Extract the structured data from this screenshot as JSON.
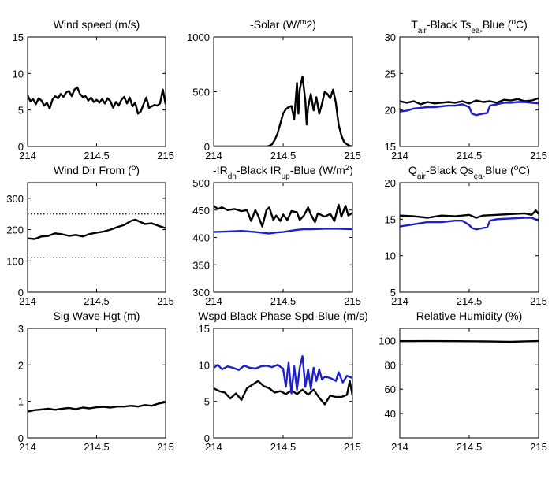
{
  "figure": {
    "background": "#ffffff"
  },
  "colors": {
    "black": "#000000",
    "blue": "#1f1fc8"
  },
  "chart_data": [
    {
      "type": "line",
      "title": "Wind speed (m/s)",
      "xlim": [
        214,
        215
      ],
      "ylim": [
        0,
        15
      ],
      "xticks": [
        214,
        214.5,
        215
      ],
      "xticklabels": [
        "214",
        "214.5",
        "215"
      ],
      "yticks": [
        0,
        5,
        10,
        15
      ],
      "yticklabels": [
        "0",
        "5",
        "10",
        "15"
      ],
      "series": [
        {
          "color": "#000000",
          "x": [
            214.0,
            214.02,
            214.04,
            214.06,
            214.08,
            214.1,
            214.12,
            214.14,
            214.16,
            214.18,
            214.2,
            214.22,
            214.24,
            214.26,
            214.28,
            214.3,
            214.32,
            214.34,
            214.36,
            214.38,
            214.4,
            214.42,
            214.44,
            214.46,
            214.48,
            214.5,
            214.52,
            214.54,
            214.56,
            214.58,
            214.6,
            214.62,
            214.64,
            214.66,
            214.68,
            214.7,
            214.72,
            214.74,
            214.76,
            214.78,
            214.8,
            214.82,
            214.84,
            214.86,
            214.88,
            214.9,
            214.92,
            214.94,
            214.96,
            214.98,
            215.0
          ],
          "y": [
            7.0,
            6.2,
            6.5,
            5.8,
            6.6,
            6.3,
            5.6,
            6.0,
            5.2,
            6.4,
            6.9,
            6.6,
            7.2,
            6.8,
            7.4,
            7.6,
            6.9,
            7.8,
            8.1,
            7.2,
            6.8,
            6.9,
            6.3,
            6.7,
            6.1,
            6.4,
            6.0,
            6.5,
            5.9,
            6.6,
            6.2,
            5.3,
            6.1,
            5.6,
            6.4,
            6.8,
            5.9,
            6.7,
            5.5,
            6.0,
            4.5,
            4.8,
            5.8,
            6.7,
            5.3,
            5.5,
            5.7,
            5.6,
            5.9,
            7.8,
            5.8
          ]
        }
      ]
    },
    {
      "type": "line",
      "title": "-Solar (W/m2)",
      "xlim": [
        214,
        215
      ],
      "ylim": [
        0,
        1000
      ],
      "xticks": [
        214,
        214.5,
        215
      ],
      "xticklabels": [
        "214",
        "214.5",
        "215"
      ],
      "yticks": [
        0,
        500,
        1000
      ],
      "yticklabels": [
        "0",
        "500",
        "1000"
      ],
      "series": [
        {
          "color": "#000000",
          "x": [
            214.0,
            214.1,
            214.2,
            214.3,
            214.38,
            214.4,
            214.42,
            214.44,
            214.46,
            214.48,
            214.5,
            214.52,
            214.54,
            214.56,
            214.58,
            214.6,
            214.61,
            214.62,
            214.64,
            214.66,
            214.67,
            214.68,
            214.7,
            214.72,
            214.74,
            214.76,
            214.78,
            214.8,
            214.82,
            214.84,
            214.86,
            214.88,
            214.9,
            214.92,
            214.94,
            214.96,
            214.98,
            215.0
          ],
          "y": [
            0,
            0,
            0,
            0,
            0,
            5,
            20,
            60,
            120,
            210,
            300,
            340,
            360,
            370,
            250,
            580,
            300,
            520,
            640,
            420,
            200,
            360,
            480,
            330,
            450,
            300,
            390,
            500,
            480,
            440,
            520,
            400,
            200,
            100,
            40,
            20,
            5,
            0
          ]
        }
      ]
    },
    {
      "type": "line",
      "title": "Tair-Black Tsea-Blue (oC)",
      "xlim": [
        214,
        215
      ],
      "ylim": [
        15,
        30
      ],
      "xticks": [
        214,
        214.5,
        215
      ],
      "xticklabels": [
        "214",
        "214.5",
        "215"
      ],
      "yticks": [
        15,
        20,
        25,
        30
      ],
      "yticklabels": [
        "15",
        "20",
        "25",
        "30"
      ],
      "series": [
        {
          "color": "#000000",
          "x": [
            214.0,
            214.05,
            214.1,
            214.15,
            214.2,
            214.25,
            214.3,
            214.35,
            214.4,
            214.45,
            214.5,
            214.55,
            214.6,
            214.65,
            214.7,
            214.75,
            214.8,
            214.85,
            214.9,
            214.95,
            215.0
          ],
          "y": [
            21.2,
            21.0,
            21.2,
            20.8,
            21.1,
            20.9,
            21.0,
            21.1,
            21.0,
            21.2,
            20.9,
            21.3,
            21.1,
            21.2,
            21.0,
            21.4,
            21.3,
            21.5,
            21.2,
            21.3,
            21.6
          ]
        },
        {
          "color": "#1f1fc8",
          "x": [
            214.0,
            214.05,
            214.1,
            214.15,
            214.2,
            214.25,
            214.3,
            214.35,
            214.4,
            214.45,
            214.5,
            214.52,
            214.55,
            214.6,
            214.63,
            214.65,
            214.7,
            214.75,
            214.8,
            214.85,
            214.9,
            214.95,
            215.0
          ],
          "y": [
            19.8,
            19.9,
            20.2,
            20.3,
            20.4,
            20.4,
            20.5,
            20.6,
            20.6,
            20.8,
            20.4,
            19.5,
            19.3,
            19.5,
            19.6,
            20.6,
            20.8,
            21.0,
            21.0,
            21.1,
            21.1,
            21.0,
            20.9
          ]
        }
      ]
    },
    {
      "type": "line",
      "title": "Wind Dir From (o)",
      "xlim": [
        214,
        215
      ],
      "ylim": [
        0,
        350
      ],
      "xticks": [
        214,
        214.5,
        215
      ],
      "xticklabels": [
        "214",
        "214.5",
        "215"
      ],
      "yticks": [
        0,
        100,
        200,
        300
      ],
      "yticklabels": [
        "0",
        "100",
        "200",
        "300"
      ],
      "reference_lines": [
        250,
        110
      ],
      "series": [
        {
          "color": "#000000",
          "x": [
            214.0,
            214.05,
            214.1,
            214.15,
            214.2,
            214.25,
            214.3,
            214.35,
            214.4,
            214.45,
            214.5,
            214.55,
            214.6,
            214.65,
            214.7,
            214.75,
            214.78,
            214.8,
            214.85,
            214.9,
            214.95,
            215.0
          ],
          "y": [
            172,
            170,
            178,
            180,
            188,
            185,
            180,
            183,
            178,
            186,
            190,
            194,
            200,
            208,
            215,
            228,
            232,
            228,
            218,
            220,
            212,
            205
          ]
        }
      ]
    },
    {
      "type": "line",
      "title": "-IRdn-Black IRup-Blue (W/m2)",
      "xlim": [
        214,
        215
      ],
      "ylim": [
        300,
        500
      ],
      "xticks": [
        214,
        214.5,
        215
      ],
      "xticklabels": [
        "214",
        "214.5",
        "215"
      ],
      "yticks": [
        300,
        350,
        400,
        450,
        500
      ],
      "yticklabels": [
        "300",
        "350",
        "400",
        "450",
        "500"
      ],
      "series": [
        {
          "color": "#000000",
          "x": [
            214.0,
            214.03,
            214.06,
            214.1,
            214.15,
            214.2,
            214.24,
            214.27,
            214.3,
            214.32,
            214.35,
            214.38,
            214.4,
            214.43,
            214.45,
            214.48,
            214.5,
            214.53,
            214.56,
            214.6,
            214.62,
            214.65,
            214.68,
            214.7,
            214.73,
            214.75,
            214.8,
            214.84,
            214.87,
            214.9,
            214.92,
            214.95,
            214.97,
            215.0
          ],
          "y": [
            458,
            452,
            455,
            450,
            452,
            448,
            450,
            430,
            450,
            440,
            420,
            450,
            455,
            432,
            440,
            430,
            442,
            432,
            448,
            446,
            432,
            440,
            455,
            442,
            428,
            444,
            438,
            443,
            430,
            460,
            438,
            458,
            440,
            445
          ]
        },
        {
          "color": "#1f1fc8",
          "x": [
            214.0,
            214.1,
            214.2,
            214.3,
            214.4,
            214.45,
            214.5,
            214.55,
            214.6,
            214.65,
            214.7,
            214.8,
            214.9,
            215.0
          ],
          "y": [
            410,
            411,
            412,
            410,
            407,
            409,
            410,
            412,
            414,
            415,
            415,
            416,
            416,
            415
          ]
        }
      ]
    },
    {
      "type": "line",
      "title": "Qair-Black Qsea-Blue (oC)",
      "xlim": [
        214,
        215
      ],
      "ylim": [
        5,
        20
      ],
      "xticks": [
        214,
        214.5,
        215
      ],
      "xticklabels": [
        "214",
        "214.5",
        "215"
      ],
      "yticks": [
        5,
        10,
        15,
        20
      ],
      "yticklabels": [
        "5",
        "10",
        "15",
        "20"
      ],
      "series": [
        {
          "color": "#000000",
          "x": [
            214.0,
            214.1,
            214.2,
            214.3,
            214.4,
            214.5,
            214.55,
            214.6,
            214.7,
            214.8,
            214.9,
            214.95,
            214.98,
            215.0
          ],
          "y": [
            15.5,
            15.4,
            15.2,
            15.5,
            15.4,
            15.6,
            15.2,
            15.5,
            15.6,
            15.7,
            15.8,
            15.6,
            16.2,
            15.7
          ]
        },
        {
          "color": "#1f1fc8",
          "x": [
            214.0,
            214.1,
            214.2,
            214.3,
            214.4,
            214.45,
            214.5,
            214.52,
            214.55,
            214.6,
            214.63,
            214.65,
            214.7,
            214.8,
            214.9,
            214.95,
            215.0
          ],
          "y": [
            14.0,
            14.3,
            14.6,
            14.6,
            14.8,
            14.8,
            14.2,
            13.8,
            13.6,
            13.8,
            13.9,
            14.8,
            15.0,
            15.1,
            15.2,
            15.2,
            14.8
          ]
        }
      ]
    },
    {
      "type": "line",
      "title": "Sig Wave Hgt (m)",
      "xlim": [
        214,
        215
      ],
      "ylim": [
        0,
        3
      ],
      "xticks": [
        214,
        214.5,
        215
      ],
      "xticklabels": [
        "214",
        "214.5",
        "215"
      ],
      "yticks": [
        0,
        1,
        2,
        3
      ],
      "yticklabels": [
        "0",
        "1",
        "2",
        "3"
      ],
      "series": [
        {
          "color": "#000000",
          "x": [
            214.0,
            214.05,
            214.1,
            214.15,
            214.2,
            214.25,
            214.3,
            214.35,
            214.4,
            214.45,
            214.5,
            214.55,
            214.6,
            214.65,
            214.7,
            214.75,
            214.8,
            214.85,
            214.9,
            214.95,
            215.0
          ],
          "y": [
            0.72,
            0.76,
            0.78,
            0.8,
            0.77,
            0.8,
            0.82,
            0.79,
            0.83,
            0.81,
            0.84,
            0.85,
            0.83,
            0.86,
            0.86,
            0.88,
            0.86,
            0.9,
            0.88,
            0.94,
            0.98
          ]
        }
      ]
    },
    {
      "type": "line",
      "title": "Wspd-Black Phase Spd-Blue (m/s)",
      "xlim": [
        214,
        215
      ],
      "ylim": [
        0,
        15
      ],
      "xticks": [
        214,
        214.5,
        215
      ],
      "xticklabels": [
        "214",
        "214.5",
        "215"
      ],
      "yticks": [
        0,
        5,
        10,
        15
      ],
      "yticklabels": [
        "0",
        "5",
        "10",
        "15"
      ],
      "series": [
        {
          "color": "#000000",
          "x": [
            214.0,
            214.04,
            214.08,
            214.12,
            214.16,
            214.2,
            214.24,
            214.28,
            214.32,
            214.36,
            214.4,
            214.44,
            214.48,
            214.52,
            214.56,
            214.6,
            214.64,
            214.68,
            214.72,
            214.76,
            214.8,
            214.84,
            214.88,
            214.92,
            214.96,
            214.98,
            215.0
          ],
          "y": [
            6.8,
            6.4,
            6.2,
            5.4,
            6.1,
            5.2,
            6.8,
            7.3,
            7.8,
            7.1,
            6.8,
            6.2,
            6.4,
            6.0,
            6.5,
            6.0,
            6.6,
            5.9,
            6.6,
            5.5,
            4.6,
            5.8,
            5.6,
            5.6,
            5.9,
            7.8,
            5.8
          ]
        },
        {
          "color": "#1f1fc8",
          "x": [
            214.0,
            214.03,
            214.06,
            214.1,
            214.14,
            214.18,
            214.22,
            214.26,
            214.3,
            214.34,
            214.38,
            214.42,
            214.46,
            214.5,
            214.52,
            214.54,
            214.56,
            214.58,
            214.6,
            214.62,
            214.64,
            214.66,
            214.68,
            214.7,
            214.72,
            214.74,
            214.76,
            214.78,
            214.8,
            214.84,
            214.88,
            214.9,
            214.93,
            214.96,
            215.0
          ],
          "y": [
            9.6,
            10.0,
            9.4,
            9.8,
            9.6,
            9.3,
            9.9,
            9.6,
            9.5,
            9.8,
            9.9,
            9.7,
            10.0,
            9.5,
            7.0,
            10.3,
            6.1,
            9.8,
            6.6,
            9.6,
            11.2,
            7.0,
            9.4,
            6.7,
            9.6,
            7.8,
            9.4,
            8.0,
            8.4,
            8.2,
            7.8,
            9.0,
            7.6,
            8.5,
            8.2
          ]
        }
      ]
    },
    {
      "type": "line",
      "title": "Relative Humidity (%)",
      "xlim": [
        214,
        215
      ],
      "ylim": [
        20,
        110
      ],
      "xticks": [
        214,
        214.5,
        215
      ],
      "xticklabels": [
        "214",
        "214.5",
        "215"
      ],
      "yticks": [
        40,
        60,
        80,
        100
      ],
      "yticklabels": [
        "40",
        "60",
        "80",
        "100"
      ],
      "series": [
        {
          "color": "#000000",
          "x": [
            214.0,
            214.2,
            214.4,
            214.6,
            214.7,
            214.8,
            214.9,
            215.0
          ],
          "y": [
            99.5,
            99.6,
            99.5,
            99.4,
            99.2,
            99.0,
            99.4,
            99.6
          ]
        }
      ]
    }
  ]
}
